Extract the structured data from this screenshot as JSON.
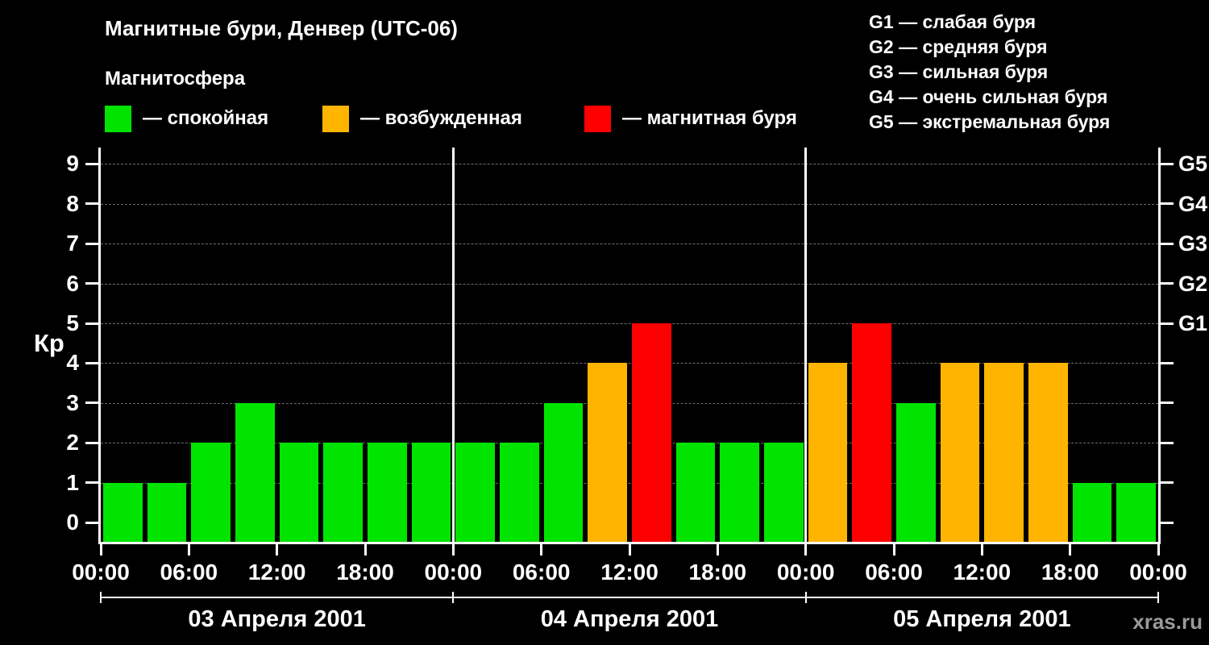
{
  "header": {
    "title": "Магнитные бури, Денвер (UTC-06)"
  },
  "legend": {
    "header": "Магнитосфера",
    "items": [
      {
        "name": "quiet",
        "color": "#00e400",
        "label": "— спокойная"
      },
      {
        "name": "excited",
        "color": "#ffb400",
        "label": "— возбужденная"
      },
      {
        "name": "storm",
        "color": "#ff0000",
        "label": "— магнитная буря"
      }
    ]
  },
  "g_legend": {
    "items": [
      "G1 — слабая буря",
      "G2 — средняя буря",
      "G3 — сильная буря",
      "G4 — очень сильная буря",
      "G5 — экстремальная буря"
    ]
  },
  "chart_data": {
    "type": "bar",
    "title": "Магнитные бури, Денвер (UTC-06)",
    "ylabel": "Кр",
    "ylim": [
      0,
      9.5
    ],
    "yticks": [
      0,
      1,
      2,
      3,
      4,
      5,
      6,
      7,
      8,
      9
    ],
    "right_axis": [
      {
        "kp": 5,
        "label": "G1"
      },
      {
        "kp": 6,
        "label": "G2"
      },
      {
        "kp": 7,
        "label": "G3"
      },
      {
        "kp": 8,
        "label": "G4"
      },
      {
        "kp": 9,
        "label": "G5"
      }
    ],
    "interval_hours": 3,
    "x_tick_labels": [
      "00:00",
      "06:00",
      "12:00",
      "18:00",
      "00:00",
      "06:00",
      "12:00",
      "18:00",
      "00:00",
      "06:00",
      "12:00",
      "18:00",
      "00:00"
    ],
    "days": [
      {
        "date": "03 Апреля 2001",
        "values": [
          1,
          1,
          2,
          3,
          2,
          2,
          2,
          2
        ]
      },
      {
        "date": "04 Апреля 2001",
        "values": [
          2,
          2,
          3,
          4,
          5,
          2,
          2,
          2
        ]
      },
      {
        "date": "05 Апреля 2001",
        "values": [
          4,
          5,
          3,
          4,
          4,
          4,
          1,
          1
        ]
      }
    ],
    "colors": {
      "quiet": "#00e400",
      "excited": "#ffb400",
      "storm": "#ff0000"
    },
    "color_rule": {
      "quiet_max": 3,
      "excited_max": 4
    },
    "grid": "dashed horizontal",
    "legend_position": "top"
  },
  "footer": {
    "watermark": "xras.ru"
  }
}
